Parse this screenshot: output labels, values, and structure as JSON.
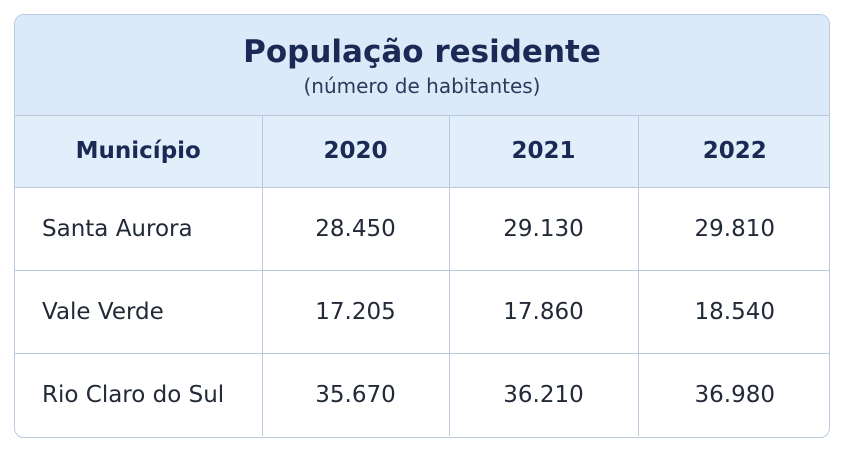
{
  "chart_data": {
    "type": "table",
    "title": "População residente",
    "subtitle": "(número de habitantes)",
    "columns": [
      "Município",
      "2020",
      "2021",
      "2022"
    ],
    "rows": [
      [
        "Santa Aurora",
        "28.450",
        "29.130",
        "29.810"
      ],
      [
        "Vale Verde",
        "17.205",
        "17.860",
        "18.540"
      ],
      [
        "Rio Claro do Sul",
        "35.670",
        "36.210",
        "36.980"
      ]
    ]
  },
  "colors": {
    "header_background": "#dce9f9",
    "border": "#b9c9e0",
    "title_text": "#1b2a55"
  }
}
